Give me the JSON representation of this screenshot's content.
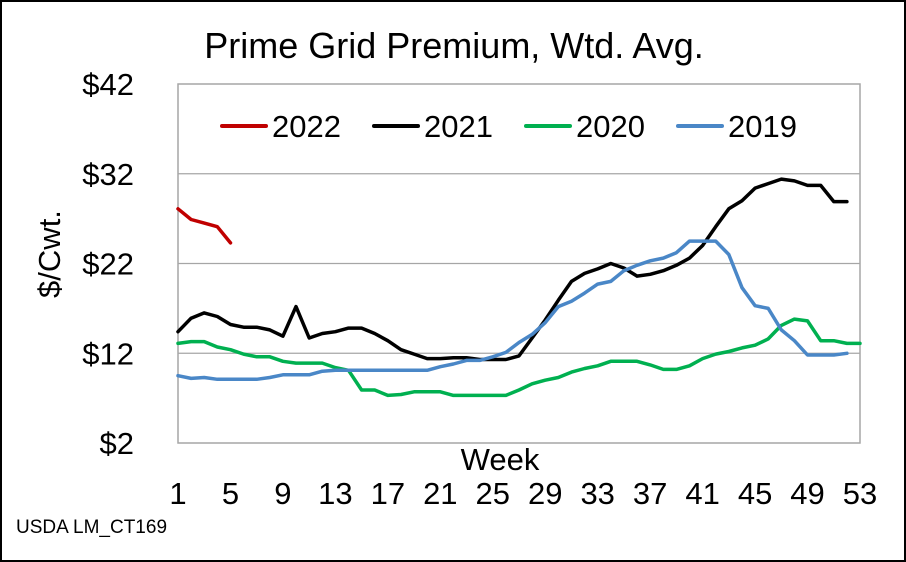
{
  "chart_data": {
    "type": "line",
    "title": "Prime Grid Premium, Wtd. Avg.",
    "xlabel": "Week",
    "ylabel": "$/Cwt.",
    "xlim": [
      1,
      53
    ],
    "ylim": [
      2,
      42
    ],
    "xticks": [
      "1",
      "5",
      "9",
      "13",
      "17",
      "21",
      "25",
      "29",
      "33",
      "37",
      "41",
      "45",
      "49",
      "53"
    ],
    "yticks": [
      "$2",
      "$12",
      "$22",
      "$32",
      "$42"
    ],
    "grid": "horizontal",
    "legend_position": "top",
    "footnote": "USDA LM_CT169",
    "series": [
      {
        "name": "2022",
        "color": "#c00000",
        "x": [
          1,
          2,
          3,
          4,
          5
        ],
        "y": [
          28.1,
          26.9,
          26.5,
          26.1,
          24.3
        ]
      },
      {
        "name": "2021",
        "color": "#000000",
        "x": [
          1,
          2,
          3,
          4,
          5,
          6,
          7,
          8,
          9,
          10,
          11,
          12,
          13,
          14,
          15,
          16,
          17,
          18,
          19,
          20,
          21,
          22,
          23,
          24,
          25,
          26,
          27,
          28,
          29,
          30,
          31,
          32,
          33,
          34,
          35,
          36,
          37,
          38,
          39,
          40,
          41,
          42,
          43,
          44,
          45,
          46,
          47,
          48,
          49,
          50,
          51,
          52
        ],
        "y": [
          14.4,
          15.9,
          16.5,
          16.1,
          15.2,
          14.9,
          14.9,
          14.6,
          13.9,
          17.2,
          13.7,
          14.2,
          14.4,
          14.8,
          14.8,
          14.2,
          13.4,
          12.4,
          11.9,
          11.4,
          11.4,
          11.5,
          11.5,
          11.3,
          11.3,
          11.3,
          11.7,
          13.7,
          15.7,
          17.9,
          20.0,
          20.9,
          21.4,
          22.0,
          21.5,
          20.6,
          20.8,
          21.2,
          21.8,
          22.6,
          24.0,
          26.1,
          28.1,
          29.0,
          30.4,
          30.9,
          31.4,
          31.2,
          30.7,
          30.7,
          28.9,
          28.9
        ]
      },
      {
        "name": "2020",
        "color": "#00b050",
        "x": [
          1,
          2,
          3,
          4,
          5,
          6,
          7,
          8,
          9,
          10,
          11,
          12,
          13,
          14,
          15,
          16,
          17,
          18,
          19,
          20,
          21,
          22,
          23,
          24,
          25,
          26,
          27,
          28,
          29,
          30,
          31,
          32,
          33,
          34,
          35,
          36,
          37,
          38,
          39,
          40,
          41,
          42,
          43,
          44,
          45,
          46,
          47,
          48,
          49,
          50,
          51,
          52,
          53
        ],
        "y": [
          13.1,
          13.3,
          13.3,
          12.7,
          12.4,
          11.9,
          11.6,
          11.6,
          11.1,
          10.9,
          10.9,
          10.9,
          10.4,
          10.1,
          7.9,
          7.9,
          7.3,
          7.4,
          7.7,
          7.7,
          7.7,
          7.3,
          7.3,
          7.3,
          7.3,
          7.3,
          7.9,
          8.6,
          9.0,
          9.3,
          9.9,
          10.3,
          10.6,
          11.1,
          11.1,
          11.1,
          10.7,
          10.2,
          10.2,
          10.6,
          11.4,
          11.9,
          12.2,
          12.6,
          12.9,
          13.6,
          15.1,
          15.8,
          15.6,
          13.4,
          13.4,
          13.1,
          13.1
        ]
      },
      {
        "name": "2019",
        "color": "#4a87c7",
        "x": [
          1,
          2,
          3,
          4,
          5,
          6,
          7,
          8,
          9,
          10,
          11,
          12,
          13,
          14,
          15,
          16,
          17,
          18,
          19,
          20,
          21,
          22,
          23,
          24,
          25,
          26,
          27,
          28,
          29,
          30,
          31,
          32,
          33,
          34,
          35,
          36,
          37,
          38,
          39,
          40,
          41,
          42,
          43,
          44,
          45,
          46,
          47,
          48,
          49,
          50,
          51,
          52
        ],
        "y": [
          9.5,
          9.2,
          9.3,
          9.1,
          9.1,
          9.1,
          9.1,
          9.3,
          9.6,
          9.6,
          9.6,
          10.0,
          10.1,
          10.1,
          10.1,
          10.1,
          10.1,
          10.1,
          10.1,
          10.1,
          10.5,
          10.8,
          11.2,
          11.2,
          11.6,
          12.1,
          13.2,
          14.1,
          15.4,
          17.2,
          17.8,
          18.7,
          19.7,
          20.0,
          21.2,
          21.8,
          22.3,
          22.6,
          23.2,
          24.5,
          24.5,
          24.5,
          23.0,
          19.3,
          17.3,
          17.0,
          14.6,
          13.4,
          11.8,
          11.8,
          11.8,
          12.0
        ]
      }
    ]
  }
}
